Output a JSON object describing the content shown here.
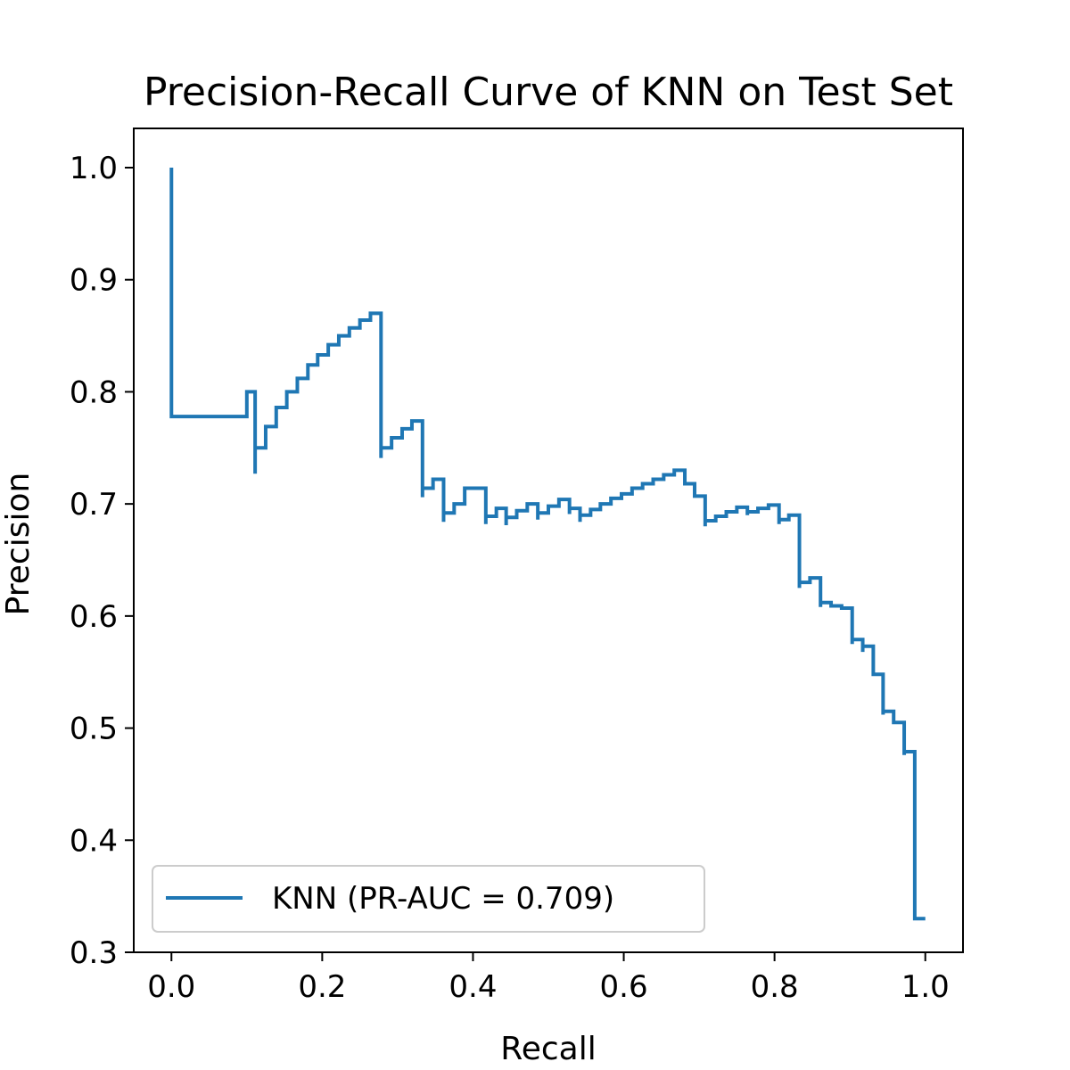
{
  "chart_data": {
    "type": "line",
    "title": "Precision-Recall Curve of KNN on Test Set",
    "xlabel": "Recall",
    "ylabel": "Precision",
    "xlim": [
      -0.05,
      1.05
    ],
    "ylim": [
      0.3,
      1.035
    ],
    "xticks": [
      0.0,
      0.2,
      0.4,
      0.6,
      0.8,
      1.0
    ],
    "xtick_labels": [
      "0.0",
      "0.2",
      "0.4",
      "0.6",
      "0.8",
      "1.0"
    ],
    "yticks": [
      0.3,
      0.4,
      0.5,
      0.6,
      0.7,
      0.8,
      0.9,
      1.0
    ],
    "ytick_labels": [
      "0.3",
      "0.4",
      "0.5",
      "0.6",
      "0.7",
      "0.8",
      "0.9",
      "1.0"
    ],
    "grid": false,
    "legend_position": "lower-left",
    "series": [
      {
        "name": "KNN (PR-AUC = 0.709)",
        "color": "#1f77b4",
        "drawstyle": "steps-post",
        "points": [
          [
            0.0,
            1.0
          ],
          [
            0.0,
            0.778
          ],
          [
            0.1,
            0.8
          ],
          [
            0.111,
            0.727
          ],
          [
            0.111,
            0.75
          ],
          [
            0.125,
            0.769
          ],
          [
            0.139,
            0.786
          ],
          [
            0.153,
            0.8
          ],
          [
            0.167,
            0.812
          ],
          [
            0.181,
            0.824
          ],
          [
            0.194,
            0.833
          ],
          [
            0.208,
            0.842
          ],
          [
            0.222,
            0.85
          ],
          [
            0.236,
            0.857
          ],
          [
            0.25,
            0.864
          ],
          [
            0.264,
            0.87
          ],
          [
            0.278,
            0.741
          ],
          [
            0.278,
            0.75
          ],
          [
            0.292,
            0.759
          ],
          [
            0.306,
            0.767
          ],
          [
            0.319,
            0.774
          ],
          [
            0.333,
            0.706
          ],
          [
            0.333,
            0.714
          ],
          [
            0.347,
            0.722
          ],
          [
            0.361,
            0.684
          ],
          [
            0.361,
            0.692
          ],
          [
            0.375,
            0.7
          ],
          [
            0.389,
            0.714
          ],
          [
            0.417,
            0.682
          ],
          [
            0.417,
            0.689
          ],
          [
            0.431,
            0.696
          ],
          [
            0.444,
            0.681
          ],
          [
            0.444,
            0.688
          ],
          [
            0.458,
            0.694
          ],
          [
            0.472,
            0.7
          ],
          [
            0.486,
            0.686
          ],
          [
            0.486,
            0.692
          ],
          [
            0.5,
            0.698
          ],
          [
            0.514,
            0.704
          ],
          [
            0.528,
            0.691
          ],
          [
            0.528,
            0.696
          ],
          [
            0.542,
            0.684
          ],
          [
            0.542,
            0.69
          ],
          [
            0.556,
            0.695
          ],
          [
            0.569,
            0.7
          ],
          [
            0.583,
            0.705
          ],
          [
            0.597,
            0.709
          ],
          [
            0.611,
            0.714
          ],
          [
            0.625,
            0.718
          ],
          [
            0.639,
            0.722
          ],
          [
            0.653,
            0.726
          ],
          [
            0.667,
            0.73
          ],
          [
            0.681,
            0.718
          ],
          [
            0.694,
            0.707
          ],
          [
            0.708,
            0.68
          ],
          [
            0.708,
            0.685
          ],
          [
            0.722,
            0.689
          ],
          [
            0.736,
            0.693
          ],
          [
            0.75,
            0.697
          ],
          [
            0.764,
            0.69
          ],
          [
            0.764,
            0.693
          ],
          [
            0.778,
            0.696
          ],
          [
            0.792,
            0.699
          ],
          [
            0.806,
            0.682
          ],
          [
            0.806,
            0.686
          ],
          [
            0.819,
            0.69
          ],
          [
            0.833,
            0.625
          ],
          [
            0.833,
            0.63
          ],
          [
            0.847,
            0.634
          ],
          [
            0.861,
            0.608
          ],
          [
            0.861,
            0.612
          ],
          [
            0.875,
            0.609
          ],
          [
            0.889,
            0.607
          ],
          [
            0.903,
            0.575
          ],
          [
            0.903,
            0.579
          ],
          [
            0.917,
            0.568
          ],
          [
            0.917,
            0.573
          ],
          [
            0.931,
            0.548
          ],
          [
            0.944,
            0.512
          ],
          [
            0.944,
            0.515
          ],
          [
            0.958,
            0.505
          ],
          [
            0.972,
            0.476
          ],
          [
            0.972,
            0.479
          ],
          [
            0.986,
            0.33
          ],
          [
            1.0,
            0.33
          ]
        ]
      }
    ]
  }
}
